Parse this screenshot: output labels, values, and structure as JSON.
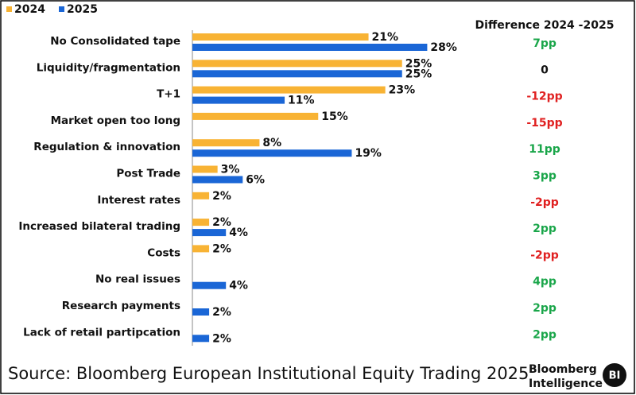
{
  "chart_data": {
    "type": "bar",
    "orientation": "horizontal",
    "categories": [
      "No Consolidated tape",
      "Liquidity/fragmentation",
      "T+1",
      "Market open too long",
      "Regulation & innovation",
      "Post Trade",
      "Interest rates",
      "Increased bilateral trading",
      "Costs",
      "No real issues",
      "Research payments",
      "Lack of retail partipcation"
    ],
    "series": [
      {
        "name": "2024",
        "color": "#f8b334",
        "values": [
          21,
          25,
          23,
          15,
          8,
          3,
          2,
          2,
          2,
          null,
          null,
          null
        ],
        "value_labels": [
          "21%",
          "25%",
          "23%",
          "15%",
          "8%",
          "3%",
          "2%",
          "2%",
          "2%",
          null,
          null,
          null
        ]
      },
      {
        "name": "2025",
        "color": "#1a66d6",
        "values": [
          28,
          25,
          11,
          null,
          19,
          6,
          null,
          4,
          null,
          4,
          2,
          2
        ],
        "value_labels": [
          "28%",
          "25%",
          "11%",
          null,
          "19%",
          "6%",
          null,
          "4%",
          null,
          "4%",
          "2%",
          "2%"
        ]
      }
    ],
    "difference": {
      "title": "Difference 2024 -2025",
      "values": [
        7,
        0,
        -12,
        -15,
        11,
        3,
        -2,
        2,
        -2,
        4,
        2,
        2
      ],
      "value_labels": [
        "7pp",
        "0",
        "-12pp",
        "-15pp",
        "11pp",
        "3pp",
        "-2pp",
        "2pp",
        "-2pp",
        "4pp",
        "2pp",
        "2pp"
      ],
      "colors": {
        "positive": "#1aa64a",
        "negative": "#e02020",
        "zero": "#111111"
      }
    },
    "legend": "top-left"
  },
  "footer": {
    "source": "Source: Bloomberg European Institutional Equity Trading 2025",
    "brand": [
      "Bloomberg",
      "Intelligence"
    ],
    "badge": "BI"
  }
}
